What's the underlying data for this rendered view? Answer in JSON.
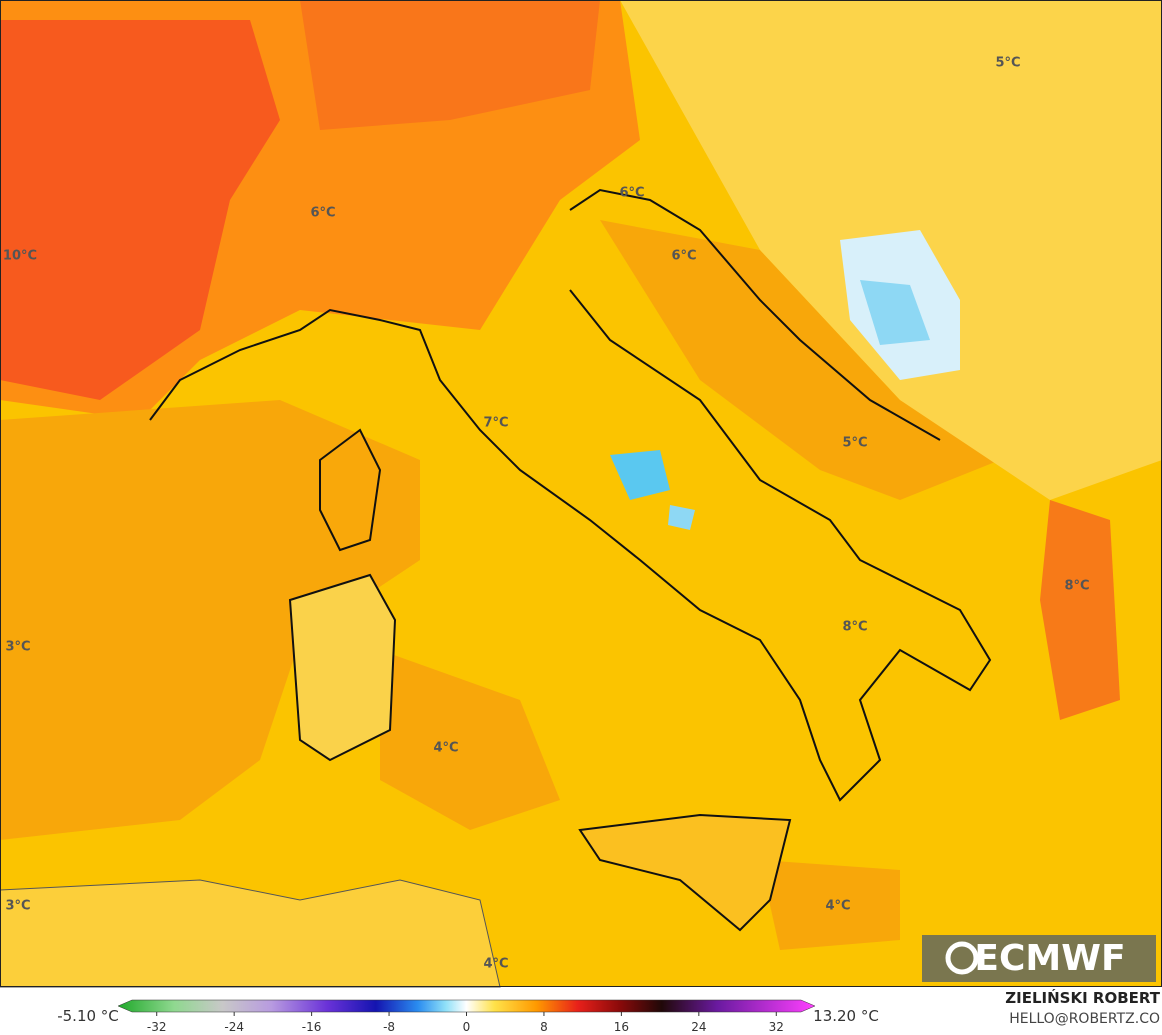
{
  "map_labels": [
    "6°C",
    "10°C",
    "6°C",
    "6°C",
    "5°C",
    "7°C",
    "5°C",
    "8°C",
    "8°C",
    "3°C",
    "4°C",
    "3°C",
    "4°C",
    "4°C"
  ],
  "colorbar": {
    "min_label": "-5.10 °C",
    "max_label": "13.20 °C",
    "lim": [
      -36,
      36
    ],
    "ticks": [
      -32,
      -24,
      -16,
      -8,
      0,
      8,
      16,
      24,
      32
    ]
  },
  "logo": "ECMWF",
  "credits": {
    "author": "ZIELIŃSKI ROBERT",
    "contact": "HELLO@ROBERTZ.CO"
  }
}
